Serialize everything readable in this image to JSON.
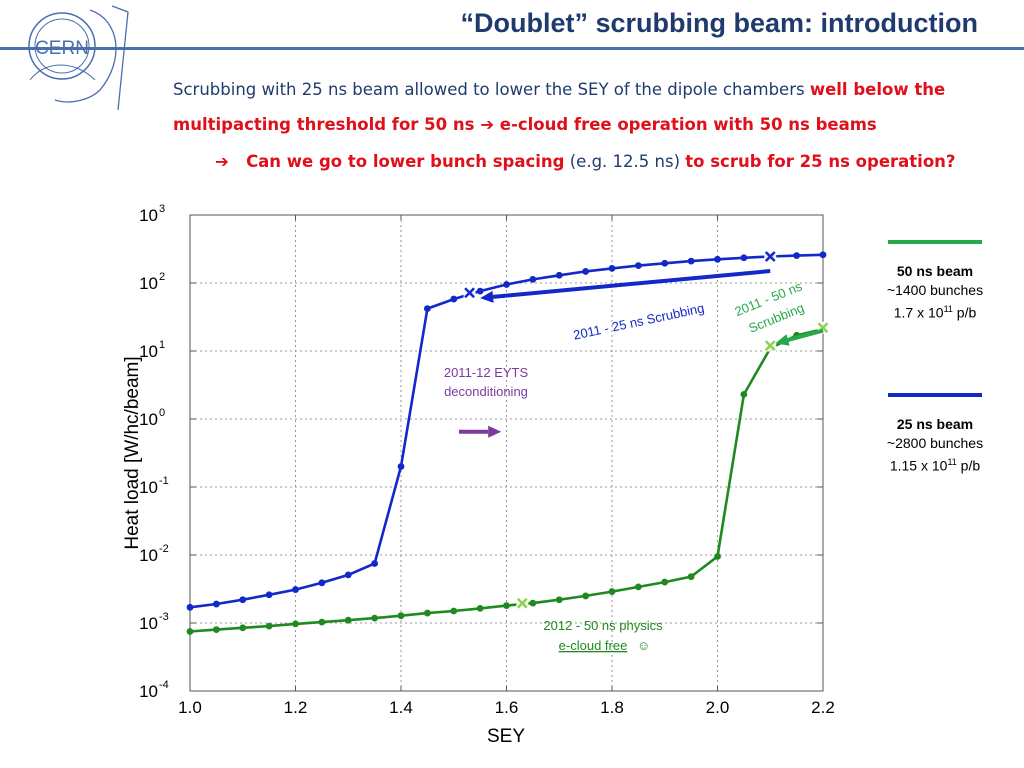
{
  "slide": {
    "title": "“Doublet” scrubbing beam: introduction",
    "logo_text": "CERN",
    "intro_a": "Scrubbing with 25 ns beam allowed to lower the SEY of the dipole chambers ",
    "intro_b": "well below the multipacting threshold for 50 ns ",
    "intro_arrow": "➔",
    "intro_c": " e-cloud free operation with 50 ns beams",
    "question_arrow": "➔",
    "question_a": "Can we go to lower bunch spacing",
    "question_b": " (e.g. 12.5 ns) ",
    "question_c": "to scrub for 25 ns operation?"
  },
  "legend": {
    "beam50": {
      "title": "50 ns beam",
      "line1": "~1400 bunches",
      "line2_pre": "1.7 x 10",
      "line2_exp": "11",
      "line2_post": " p/b",
      "color": "#27a94a"
    },
    "beam25": {
      "title": "25 ns beam",
      "line1": "~2800 bunches",
      "line2_pre": "1.15 x 10",
      "line2_exp": "11",
      "line2_post": " p/b",
      "color": "#1228c8"
    }
  },
  "annotations": {
    "scrub25": "2011 - 25 ns Scrubbing",
    "scrub50_line1": "2011 - 50 ns",
    "scrub50_line2": "Scrubbing",
    "eyts_line1": "2011-12 EYTS",
    "eyts_line2": "deconditioning",
    "physics_line1": "2012 - 50 ns physics",
    "physics_line2": "e-cloud free",
    "physics_smiley": " ☺"
  },
  "chart_data": {
    "type": "line",
    "xlabel": "SEY",
    "ylabel": "Heat load [W/hc/beam]",
    "y_scale": "log",
    "xlim": [
      1.0,
      2.2
    ],
    "ylim": [
      0.0001,
      1000
    ],
    "x_ticks": [
      "1.0",
      "1.2",
      "1.4",
      "1.6",
      "1.8",
      "2.0",
      "2.2"
    ],
    "y_ticks": [
      {
        "base": "10",
        "exp": "-4",
        "value": 0.0001
      },
      {
        "base": "10",
        "exp": "-3",
        "value": 0.001
      },
      {
        "base": "10",
        "exp": "-2",
        "value": 0.01
      },
      {
        "base": "10",
        "exp": "-1",
        "value": 0.1
      },
      {
        "base": "10",
        "exp": "0",
        "value": 1
      },
      {
        "base": "10",
        "exp": "1",
        "value": 10
      },
      {
        "base": "10",
        "exp": "2",
        "value": 100
      },
      {
        "base": "10",
        "exp": "3",
        "value": 1000
      }
    ],
    "grid": true,
    "series": [
      {
        "name": "25 ns beam",
        "color": "#1228c8",
        "x": [
          1.0,
          1.05,
          1.1,
          1.15,
          1.2,
          1.25,
          1.3,
          1.35,
          1.4,
          1.45,
          1.5,
          1.55,
          1.6,
          1.65,
          1.7,
          1.75,
          1.8,
          1.85,
          1.9,
          1.95,
          2.0,
          2.05,
          2.1,
          2.15,
          2.2
        ],
        "y": [
          0.0017,
          0.0019,
          0.0022,
          0.0026,
          0.0031,
          0.0039,
          0.0051,
          0.0075,
          0.2,
          42,
          58,
          76,
          95,
          113,
          130,
          148,
          164,
          180,
          195,
          210,
          223,
          235,
          245,
          253,
          260
        ]
      },
      {
        "name": "50 ns beam",
        "color": "#1f8a1f",
        "x": [
          1.0,
          1.05,
          1.1,
          1.15,
          1.2,
          1.25,
          1.3,
          1.35,
          1.4,
          1.45,
          1.5,
          1.55,
          1.6,
          1.65,
          1.7,
          1.75,
          1.8,
          1.85,
          1.9,
          1.95,
          2.0,
          2.05,
          2.1,
          2.15,
          2.2
        ],
        "y": [
          0.00075,
          0.0008,
          0.00085,
          0.0009,
          0.00097,
          0.00103,
          0.0011,
          0.00118,
          0.00128,
          0.0014,
          0.0015,
          0.00164,
          0.0018,
          0.00196,
          0.0022,
          0.0025,
          0.0029,
          0.0034,
          0.004,
          0.0048,
          0.0095,
          2.3,
          11,
          17,
          21
        ]
      }
    ],
    "markers": [
      {
        "series": "25 ns beam",
        "x": 1.53,
        "y": 72
      },
      {
        "series": "25 ns beam",
        "x": 2.1,
        "y": 245
      },
      {
        "series": "50 ns beam",
        "x": 2.1,
        "y": 12
      },
      {
        "series": "50 ns beam",
        "x": 2.2,
        "y": 22
      },
      {
        "series": "50 ns beam",
        "x": 1.63,
        "y": 0.00195
      }
    ],
    "arrows": [
      {
        "label": "2011 - 25 ns Scrubbing",
        "from": [
          2.1,
          150
        ],
        "to": [
          1.55,
          60
        ],
        "color": "#1228c8"
      },
      {
        "label": "2011 - 50 ns Scrubbing",
        "from": [
          2.2,
          20
        ],
        "to": [
          2.11,
          13
        ],
        "color": "#27a94a"
      },
      {
        "label": "2011-12 EYTS deconditioning",
        "from": [
          1.51,
          0.65
        ],
        "to": [
          1.59,
          0.65
        ],
        "color": "#7b3b9e"
      }
    ]
  }
}
